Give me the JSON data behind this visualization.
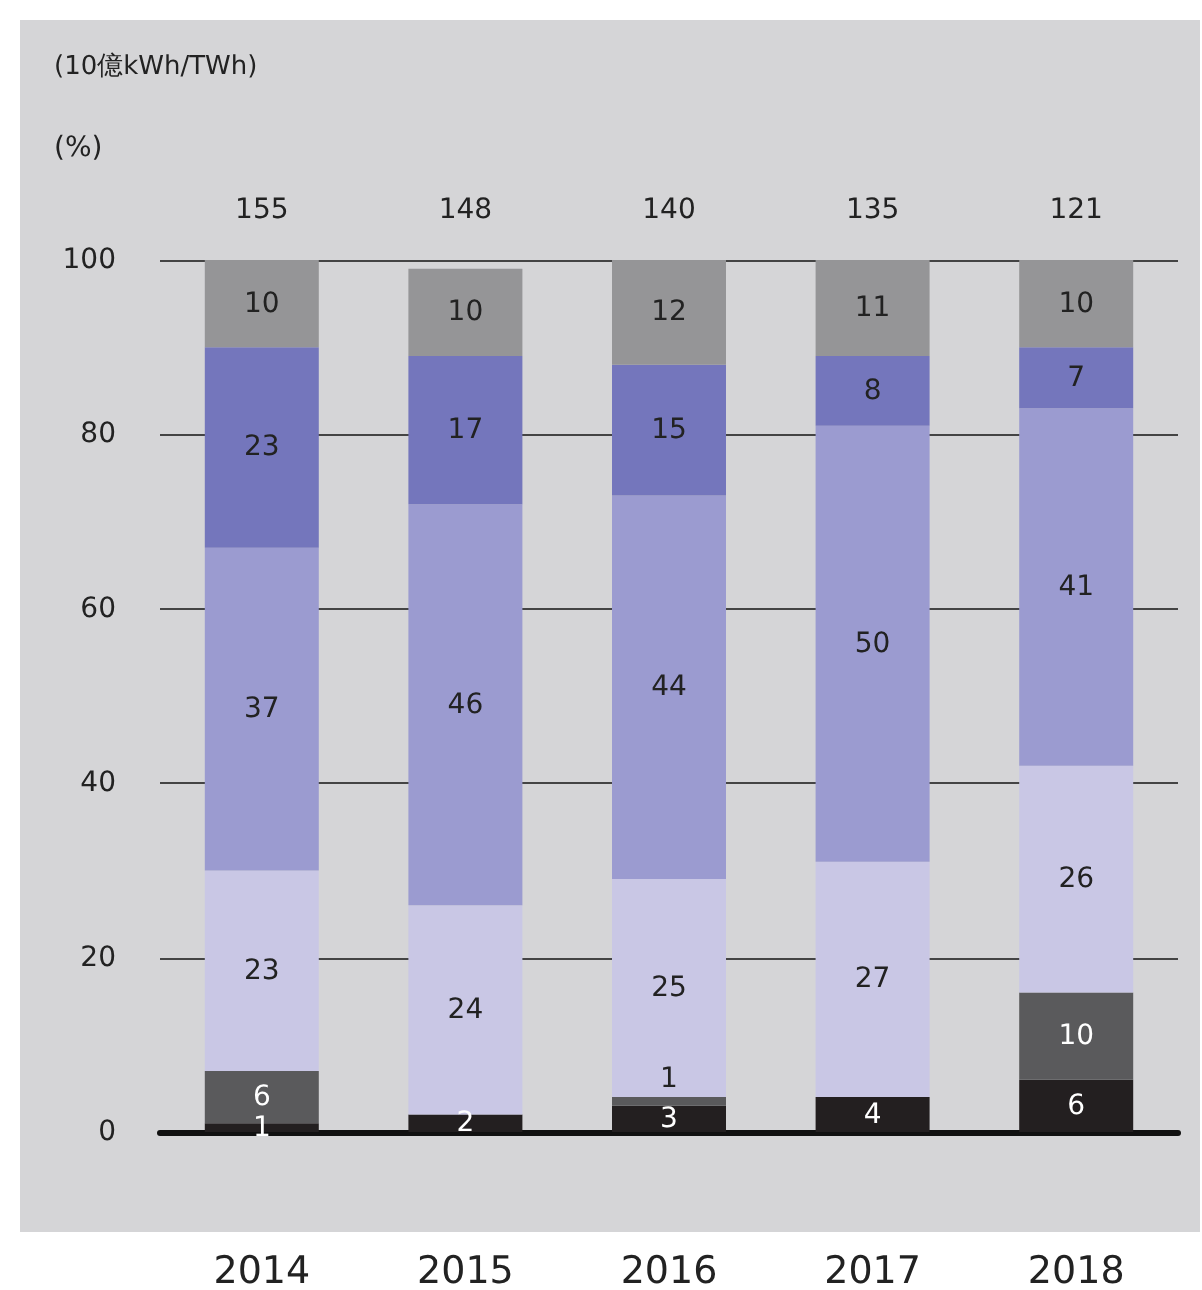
{
  "chart_data": {
    "type": "bar",
    "title": "(10億kWh/TWh)",
    "ylabel": "(%)",
    "categories": [
      "2014",
      "2015",
      "2016",
      "2017",
      "2018"
    ],
    "stacked": true,
    "data_labels": true,
    "grid": "y",
    "ylim": [
      0,
      100
    ],
    "yticks": [
      0,
      20,
      40,
      60,
      80,
      100
    ],
    "annotations": [
      "155",
      "148",
      "140",
      "135",
      "121"
    ],
    "series": [
      {
        "color": "#231f20",
        "values": [
          1,
          2,
          3,
          4,
          6
        ]
      },
      {
        "color": "#5a5a5c",
        "values": [
          6,
          null,
          1,
          null,
          10
        ]
      },
      {
        "color": "#c9c7e5",
        "values": [
          23,
          24,
          25,
          27,
          26
        ]
      },
      {
        "color": "#9b9bd0",
        "values": [
          37,
          46,
          44,
          50,
          41
        ]
      },
      {
        "color": "#7476bc",
        "values": [
          23,
          17,
          15,
          8,
          7
        ]
      },
      {
        "color": "#959597",
        "values": [
          10,
          10,
          12,
          11,
          10
        ]
      }
    ]
  }
}
